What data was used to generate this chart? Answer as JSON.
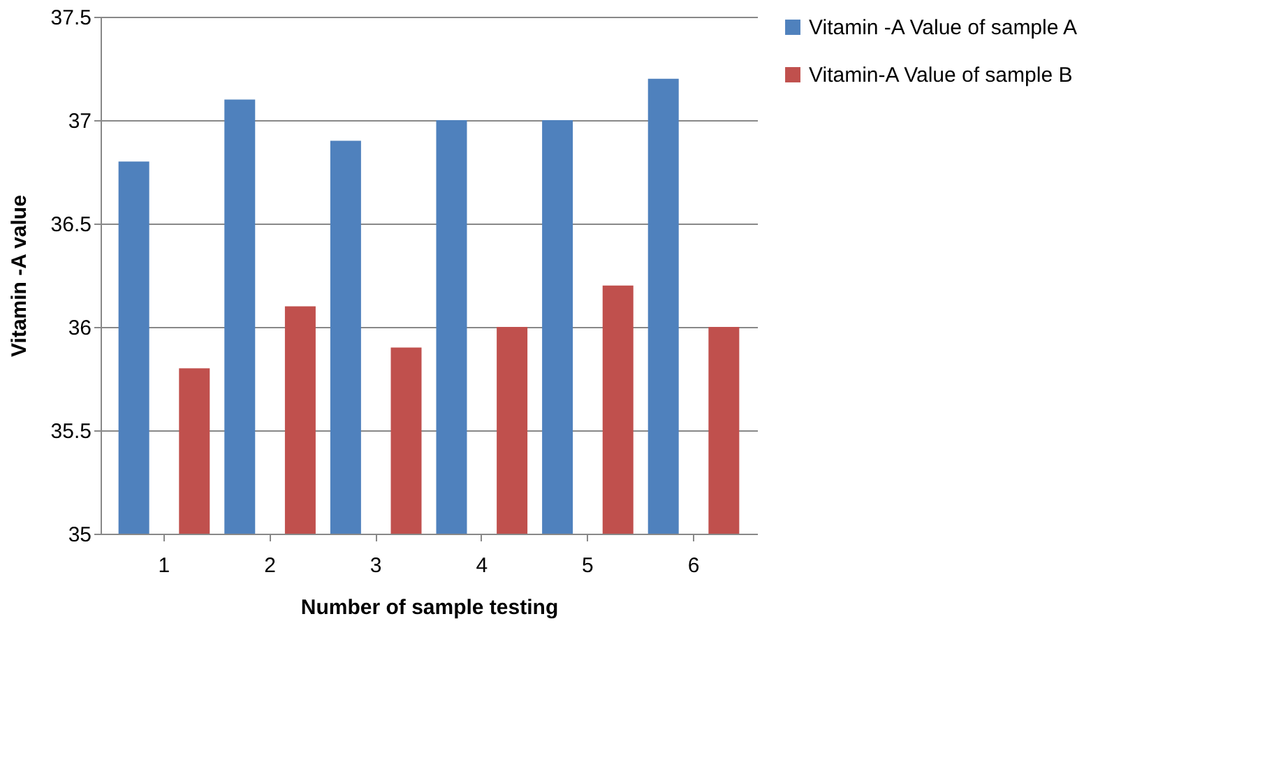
{
  "chart_data": {
    "type": "bar",
    "xlabel": "Number of sample testing",
    "ylabel": "Vitamin -A value",
    "categories": [
      "1",
      "2",
      "3",
      "4",
      "5",
      "6"
    ],
    "series": [
      {
        "name": "Vitamin -A  Value of sample A",
        "color": "#4f81bd",
        "values": [
          36.8,
          37.1,
          36.9,
          37.0,
          37.0,
          37.2
        ]
      },
      {
        "name": "Vitamin-A Value of sample B",
        "color": "#c0504d",
        "values": [
          35.8,
          36.1,
          35.9,
          36.0,
          36.2,
          36.0
        ]
      }
    ],
    "ylim": [
      35,
      37.5
    ],
    "yticks": [
      35,
      35.5,
      36,
      36.5,
      37,
      37.5
    ],
    "grid": "y",
    "legend": "right"
  }
}
